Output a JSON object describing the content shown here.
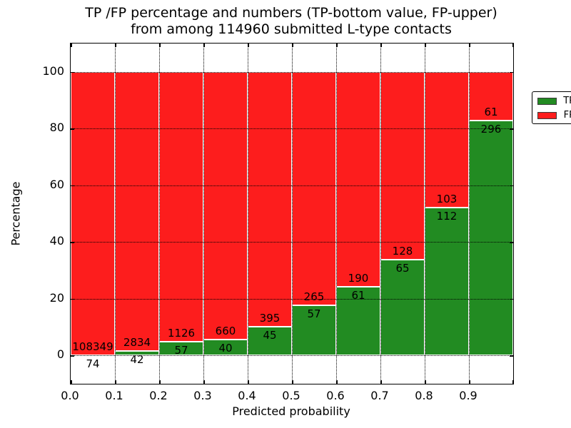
{
  "title": {
    "line1": "TP /FP percentage and numbers (TP-bottom value, FP-upper)",
    "line2": "from among 114960 submitted L-type contacts"
  },
  "chart_data": {
    "type": "bar",
    "stacked": true,
    "title": "TP /FP percentage and numbers (TP-bottom value, FP-upper) from among 114960 submitted L-type contacts",
    "xlabel": "Predicted probability",
    "ylabel": "Percentage",
    "total_contacts": 114960,
    "xlim": [
      0.0,
      1.0
    ],
    "ylim": [
      -10,
      110
    ],
    "bar_width": 0.1,
    "bin_starts": [
      0.0,
      0.1,
      0.2,
      0.3,
      0.4,
      0.5,
      0.6,
      0.7,
      0.8,
      0.9
    ],
    "x_tick_labels": [
      "0.0",
      "0.1",
      "0.2",
      "0.3",
      "0.4",
      "0.5",
      "0.6",
      "0.7",
      "0.8",
      "0.9"
    ],
    "y_ticks": [
      0,
      20,
      40,
      60,
      80,
      100
    ],
    "y_tick_labels": [
      "0",
      "20",
      "40",
      "60",
      "80",
      "100"
    ],
    "grid": "dotted",
    "series": [
      {
        "name": "TP",
        "color": "#228b22",
        "counts": [
          74,
          42,
          57,
          40,
          45,
          57,
          61,
          65,
          112,
          296
        ]
      },
      {
        "name": "FP",
        "color": "#fd1d1d",
        "counts": [
          108349,
          2834,
          1126,
          660,
          395,
          265,
          190,
          128,
          103,
          61
        ]
      }
    ],
    "tp_percent": [
      0.07,
      1.46,
      4.82,
      5.71,
      10.23,
      17.7,
      24.3,
      33.68,
      52.09,
      82.91
    ],
    "legend": {
      "position": "upper right",
      "entries": [
        {
          "label": "TP",
          "color": "#228b22"
        },
        {
          "label": "FP",
          "color": "#fd1d1d"
        }
      ]
    }
  }
}
